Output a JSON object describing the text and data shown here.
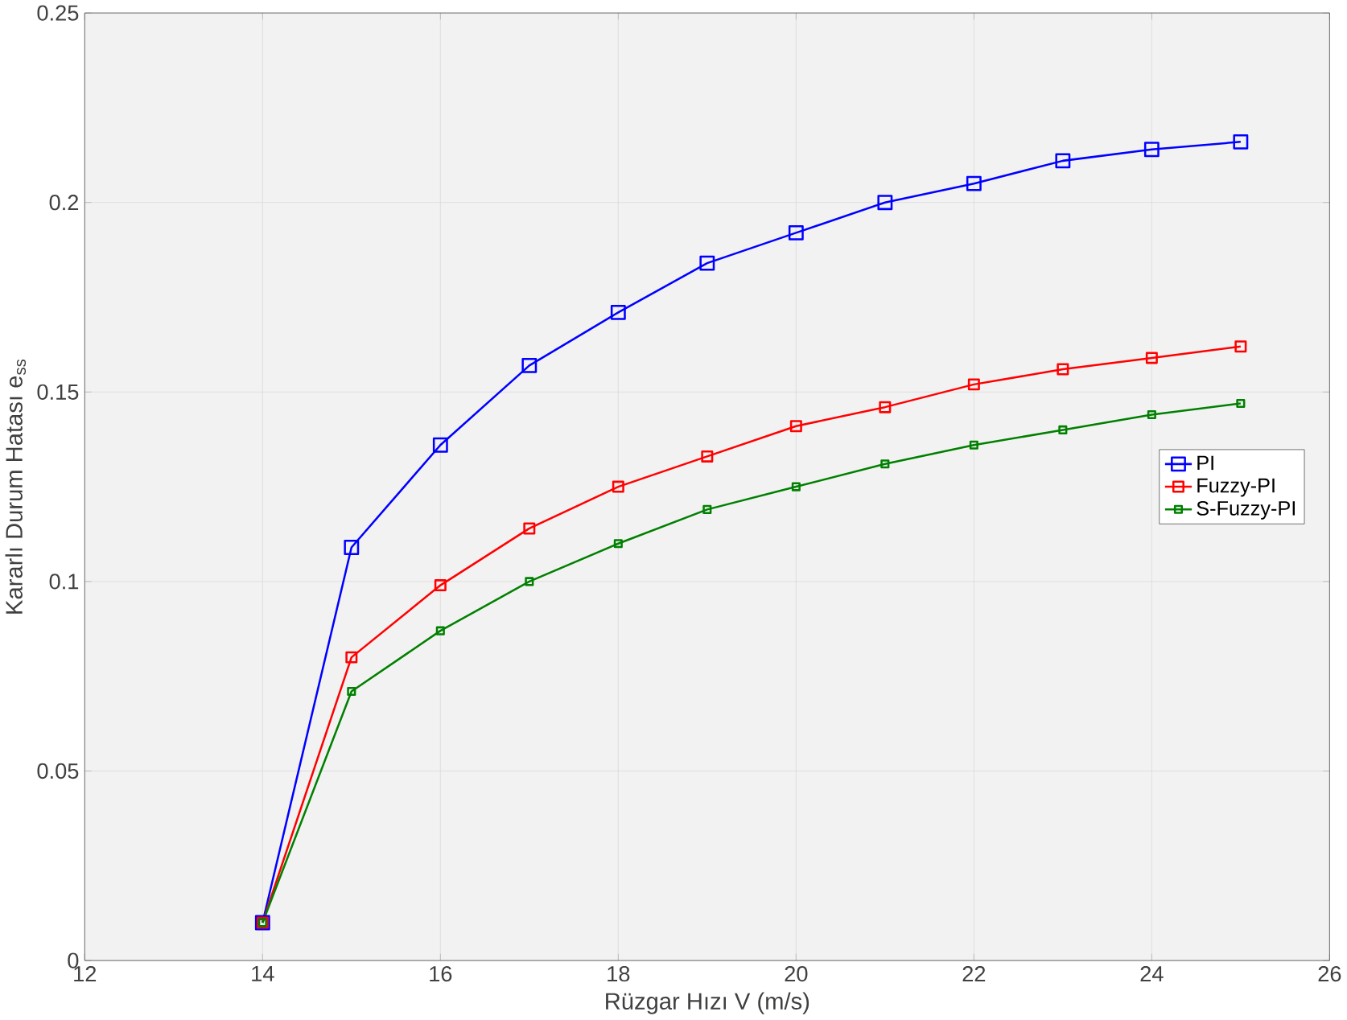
{
  "chart_data": {
    "type": "line",
    "xlabel": "Rüzgar Hızı V (m/s)",
    "ylabel": "Kararlı Durum Hatası e$_{ss}$",
    "x": [
      14,
      15,
      16,
      17,
      18,
      19,
      20,
      21,
      22,
      23,
      24,
      25
    ],
    "series": [
      {
        "name": "PI",
        "color": "#0000ff",
        "values": [
          0.01,
          0.109,
          0.136,
          0.157,
          0.171,
          0.184,
          0.192,
          0.2,
          0.205,
          0.211,
          0.214,
          0.216
        ]
      },
      {
        "name": "Fuzzy-PI",
        "color": "#ff0000",
        "values": [
          0.01,
          0.08,
          0.099,
          0.114,
          0.125,
          0.133,
          0.141,
          0.146,
          0.152,
          0.156,
          0.159,
          0.162
        ]
      },
      {
        "name": "S-Fuzzy-PI",
        "color": "#008000",
        "values": [
          0.01,
          0.071,
          0.087,
          0.1,
          0.11,
          0.119,
          0.125,
          0.131,
          0.136,
          0.14,
          0.144,
          0.147
        ]
      }
    ],
    "xlim": [
      12,
      26
    ],
    "xticks": [
      12,
      14,
      16,
      18,
      20,
      22,
      24,
      26
    ],
    "ylim": [
      0,
      0.25
    ],
    "yticks": [
      0,
      0.05,
      0.1,
      0.15,
      0.2,
      0.25
    ],
    "grid": true,
    "legend": "right",
    "marker": "square",
    "line_style": "solid"
  }
}
